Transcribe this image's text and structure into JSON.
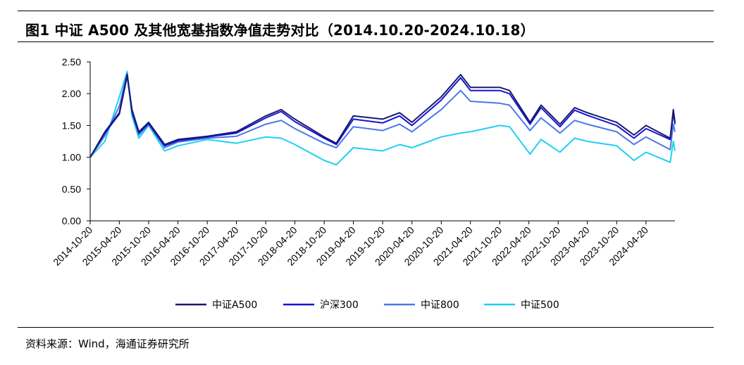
{
  "header": {
    "title": "图1   中证 A500 及其他宽基指数净值走势对比（2014.10.20-2024.10.18）"
  },
  "footer": {
    "source": "资料来源：Wind，海通证券研究所"
  },
  "chart_data": {
    "type": "line",
    "title": "",
    "xlabel": "",
    "ylabel": "",
    "ylim": [
      0,
      2.5
    ],
    "yticks": [
      "0.00",
      "0.50",
      "1.00",
      "1.50",
      "2.00",
      "2.50"
    ],
    "x_tick_labels": [
      "2014-10-20",
      "2015-04-20",
      "2015-10-20",
      "2016-04-20",
      "2016-10-20",
      "2017-04-20",
      "2017-10-20",
      "2018-04-20",
      "2018-10-20",
      "2019-04-20",
      "2019-10-20",
      "2020-04-20",
      "2020-10-20",
      "2021-04-20",
      "2021-10-20",
      "2022-04-20",
      "2022-10-20",
      "2023-04-20",
      "2023-10-20",
      "2024-04-20"
    ],
    "grid": false,
    "legend_position": "bottom",
    "x": [
      "2014-10-20",
      "2015-01-20",
      "2015-04-20",
      "2015-06-08",
      "2015-07-08",
      "2015-08-20",
      "2015-10-20",
      "2016-01-28",
      "2016-04-20",
      "2016-10-20",
      "2017-04-20",
      "2017-10-20",
      "2018-01-24",
      "2018-04-20",
      "2018-10-20",
      "2019-01-04",
      "2019-04-20",
      "2019-10-20",
      "2020-02-03",
      "2020-04-20",
      "2020-10-20",
      "2021-02-18",
      "2021-04-20",
      "2021-10-20",
      "2021-12-20",
      "2022-04-27",
      "2022-07-05",
      "2022-10-31",
      "2023-01-30",
      "2023-04-20",
      "2023-10-20",
      "2024-02-05",
      "2024-04-20",
      "2024-09-18",
      "2024-10-08",
      "2024-10-18"
    ],
    "series": [
      {
        "name": "中证A500",
        "color": "#1a1a6e",
        "values": [
          1.0,
          1.4,
          1.7,
          2.3,
          1.75,
          1.4,
          1.55,
          1.2,
          1.28,
          1.33,
          1.4,
          1.65,
          1.75,
          1.6,
          1.32,
          1.22,
          1.65,
          1.6,
          1.7,
          1.55,
          1.95,
          2.3,
          2.1,
          2.1,
          2.05,
          1.55,
          1.82,
          1.52,
          1.78,
          1.7,
          1.55,
          1.35,
          1.5,
          1.3,
          1.75,
          1.55
        ]
      },
      {
        "name": "沪深300",
        "color": "#1414d4",
        "values": [
          1.0,
          1.38,
          1.68,
          2.28,
          1.72,
          1.38,
          1.53,
          1.18,
          1.26,
          1.32,
          1.38,
          1.62,
          1.72,
          1.56,
          1.3,
          1.2,
          1.6,
          1.54,
          1.65,
          1.5,
          1.9,
          2.25,
          2.05,
          2.05,
          2.0,
          1.52,
          1.78,
          1.48,
          1.74,
          1.66,
          1.5,
          1.3,
          1.45,
          1.28,
          1.7,
          1.52
        ]
      },
      {
        "name": "中证800",
        "color": "#4a78e8",
        "values": [
          1.0,
          1.34,
          1.8,
          2.32,
          1.7,
          1.35,
          1.52,
          1.15,
          1.24,
          1.3,
          1.33,
          1.52,
          1.58,
          1.45,
          1.22,
          1.15,
          1.48,
          1.42,
          1.52,
          1.4,
          1.75,
          2.05,
          1.88,
          1.85,
          1.82,
          1.42,
          1.62,
          1.38,
          1.58,
          1.52,
          1.4,
          1.2,
          1.32,
          1.12,
          1.52,
          1.4
        ]
      },
      {
        "name": "中证500",
        "color": "#1ed0f2",
        "values": [
          1.0,
          1.25,
          1.95,
          2.35,
          1.65,
          1.3,
          1.5,
          1.1,
          1.18,
          1.28,
          1.22,
          1.32,
          1.3,
          1.2,
          0.95,
          0.88,
          1.15,
          1.1,
          1.2,
          1.15,
          1.32,
          1.38,
          1.4,
          1.5,
          1.48,
          1.05,
          1.28,
          1.08,
          1.3,
          1.25,
          1.18,
          0.95,
          1.08,
          0.92,
          1.25,
          1.1
        ]
      }
    ]
  }
}
